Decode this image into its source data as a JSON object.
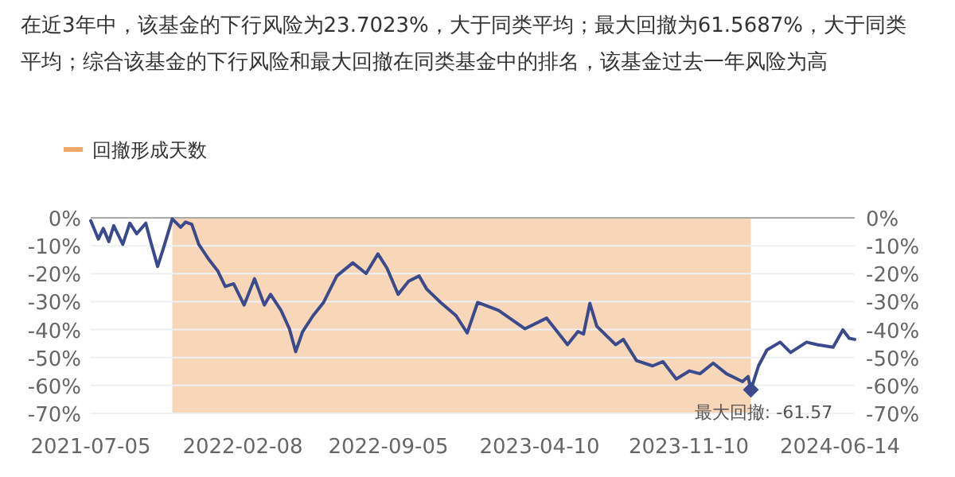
{
  "chart_data": {
    "type": "line",
    "title": "在近3年中，该基金的下行风险为23.7023%，大于同类平均；最大回撤为61.5687%，大于同类平均；综合该基金的下行风险和最大回撤在同类基金中的排名，该基金过去一年风险为高",
    "x": [
      "2021-07-05",
      "2021-07-16",
      "2021-07-23",
      "2021-07-31",
      "2021-08-07",
      "2021-08-20",
      "2021-08-30",
      "2021-09-09",
      "2021-09-22",
      "2021-09-28",
      "2021-10-09",
      "2021-10-19",
      "2021-10-30",
      "2021-11-11",
      "2021-11-18",
      "2021-11-27",
      "2021-12-07",
      "2021-12-22",
      "2022-01-03",
      "2022-01-14",
      "2022-01-26",
      "2022-02-10",
      "2022-02-25",
      "2022-03-11",
      "2022-03-20",
      "2022-04-04",
      "2022-04-16",
      "2022-04-25",
      "2022-05-05",
      "2022-05-20",
      "2022-06-04",
      "2022-06-23",
      "2022-07-16",
      "2022-08-04",
      "2022-08-21",
      "2022-09-03",
      "2022-09-19",
      "2022-10-04",
      "2022-10-19",
      "2022-10-30",
      "2022-11-19",
      "2022-12-11",
      "2022-12-27",
      "2023-01-11",
      "2023-02-10",
      "2023-03-20",
      "2023-04-20",
      "2023-05-20",
      "2023-06-04",
      "2023-06-12",
      "2023-06-21",
      "2023-07-01",
      "2023-07-28",
      "2023-08-08",
      "2023-08-27",
      "2023-09-19",
      "2023-10-04",
      "2023-10-23",
      "2023-11-11",
      "2023-11-26",
      "2023-12-15",
      "2024-01-03",
      "2024-01-26",
      "2024-02-03",
      "2024-02-07",
      "2024-02-18",
      "2024-03-01",
      "2024-03-20",
      "2024-04-04",
      "2024-04-27",
      "2024-05-12",
      "2024-06-04",
      "2024-06-18",
      "2024-06-27",
      "2024-07-05"
    ],
    "series": [
      {
        "color": "#3b4a8c",
        "values": [
          -1,
          -7.6,
          -3.8,
          -8.5,
          -2.8,
          -9.5,
          -1.9,
          -5.7,
          -1.9,
          -7.6,
          -17.4,
          -9.5,
          -0.4,
          -3.4,
          -1.5,
          -2.3,
          -9.5,
          -15.1,
          -18.9,
          -24.6,
          -23.6,
          -31.2,
          -21.8,
          -31.2,
          -27.4,
          -33.1,
          -39.7,
          -47.9,
          -40.7,
          -35,
          -30.3,
          -20.8,
          -16.1,
          -19.9,
          -12.9,
          -18,
          -27.4,
          -22.7,
          -20.8,
          -25.5,
          -30.3,
          -35,
          -41.2,
          -30.3,
          -33.1,
          -39.7,
          -35.9,
          -45.4,
          -40.7,
          -41.6,
          -30.6,
          -38.8,
          -45.4,
          -43.5,
          -51.1,
          -53,
          -51.5,
          -57.7,
          -54.8,
          -55.8,
          -52,
          -55.8,
          -58.6,
          -56.8,
          -61.57,
          -53,
          -47.3,
          -44.5,
          -48.2,
          -44.5,
          -45.4,
          -46.3,
          -40.1,
          -43.1,
          -43.5
        ]
      }
    ],
    "xlim": [
      "2021-07-05",
      "2024-07-05"
    ],
    "xticks": [
      "2021-07-05",
      "2022-02-08",
      "2022-09-05",
      "2023-04-10",
      "2023-11-10",
      "2024-06-14"
    ],
    "ylim": [
      -70,
      0
    ],
    "yticks": [
      {
        "value": 0,
        "label": "0%"
      },
      {
        "value": -10,
        "label": "-10%"
      },
      {
        "value": -20,
        "label": "-20%"
      },
      {
        "value": -30,
        "label": "-30%"
      },
      {
        "value": -40,
        "label": "-40%"
      },
      {
        "value": -50,
        "label": "-50%"
      },
      {
        "value": -60,
        "label": "-60%"
      },
      {
        "value": -70,
        "label": "-70%"
      }
    ],
    "y2lim": [
      -70,
      0
    ],
    "y2ticks": [
      {
        "value": 0,
        "label": "0%"
      },
      {
        "value": -10,
        "label": "-10%"
      },
      {
        "value": -20,
        "label": "-20%"
      },
      {
        "value": -30,
        "label": "-30%"
      },
      {
        "value": -40,
        "label": "-40%"
      },
      {
        "value": -50,
        "label": "-50%"
      },
      {
        "value": -60,
        "label": "-60%"
      },
      {
        "value": -70,
        "label": "-70%"
      }
    ],
    "bands": [
      {
        "axis": "x",
        "from": "2021-10-30",
        "to": "2024-02-07",
        "label": "回撤形成天数",
        "color": "#f8d6b8"
      }
    ],
    "annotations": [
      {
        "text": "最大回撤: -61.57",
        "x": "2024-02-07",
        "y": -61.57
      }
    ],
    "grid": "y",
    "legend": "top left"
  }
}
